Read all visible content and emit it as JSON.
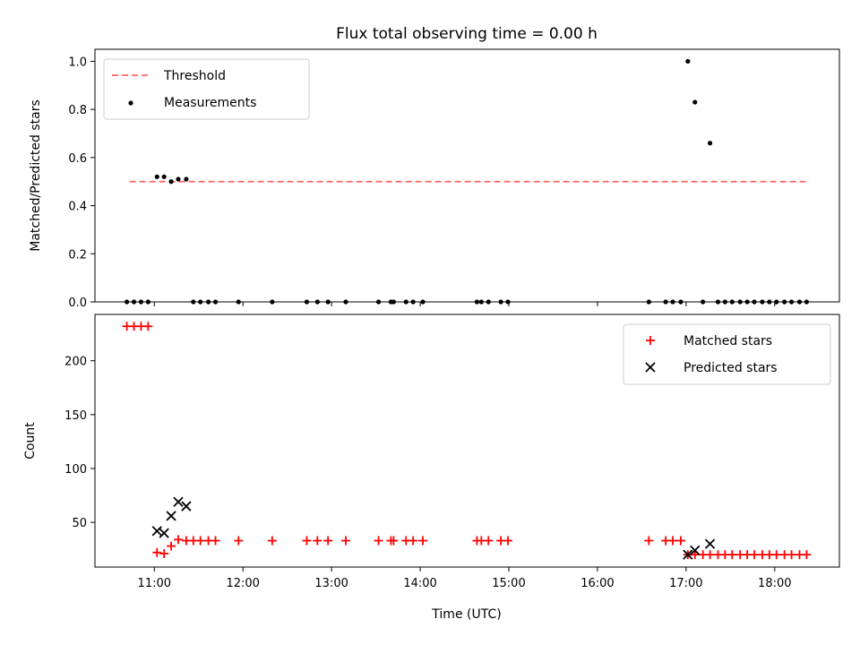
{
  "chart_data": [
    {
      "type": "scatter",
      "title": "Flux total observing time = 0.00 h",
      "ylabel": "Matched/Predicted stars",
      "ylim": [
        0,
        1.05
      ],
      "xlim": [
        10.33,
        18.73
      ],
      "yticks": [
        0.0,
        0.2,
        0.4,
        0.6,
        0.8,
        1.0
      ],
      "ytick_labels": [
        "0.0",
        "0.2",
        "0.4",
        "0.6",
        "0.8",
        "1.0"
      ],
      "legend_position": "top-left",
      "threshold": {
        "name": "Threshold",
        "value": 0.5,
        "x_range": [
          10.72,
          18.38
        ],
        "color": "#ff6666"
      },
      "measurements": {
        "name": "Measurements",
        "color": "#000000",
        "x": [
          10.69,
          10.77,
          10.85,
          10.93,
          11.03,
          11.11,
          11.19,
          11.27,
          11.36,
          11.44,
          11.52,
          11.61,
          11.69,
          11.95,
          12.33,
          12.72,
          12.84,
          12.96,
          13.16,
          13.53,
          13.67,
          13.7,
          13.84,
          13.92,
          14.03,
          14.64,
          14.69,
          14.77,
          14.91,
          14.99,
          16.58,
          16.77,
          16.85,
          16.94,
          17.02,
          17.1,
          17.19,
          17.27,
          17.36,
          17.44,
          17.52,
          17.61,
          17.69,
          17.77,
          17.86,
          17.94,
          18.02,
          18.11,
          18.19,
          18.28,
          18.36
        ],
        "y": [
          0,
          0,
          0,
          0,
          0.52,
          0.52,
          0.5,
          0.51,
          0.51,
          0,
          0,
          0,
          0,
          0,
          0,
          0,
          0,
          0,
          0,
          0,
          0,
          0,
          0,
          0,
          0,
          0,
          0,
          0,
          0,
          0,
          0,
          0,
          0,
          0,
          1.0,
          0.83,
          0,
          0.66,
          0,
          0,
          0,
          0,
          0,
          0,
          0,
          0,
          0,
          0,
          0,
          0,
          0
        ]
      }
    },
    {
      "type": "scatter",
      "xlabel": "Time (UTC)",
      "ylabel": "Count",
      "ylim": [
        8.5,
        243
      ],
      "xlim": [
        10.33,
        18.73
      ],
      "yticks": [
        50,
        100,
        150,
        200
      ],
      "ytick_labels": [
        "50",
        "100",
        "150",
        "200"
      ],
      "xticks": [
        11,
        12,
        13,
        14,
        15,
        16,
        17,
        18
      ],
      "xtick_labels": [
        "11:00",
        "12:00",
        "13:00",
        "14:00",
        "15:00",
        "16:00",
        "17:00",
        "18:00"
      ],
      "legend_position": "top-right",
      "series": [
        {
          "name": "Matched stars",
          "marker": "+",
          "color": "#ff0000",
          "x": [
            10.69,
            10.77,
            10.85,
            10.93,
            11.03,
            11.11,
            11.19,
            11.27,
            11.36,
            11.44,
            11.52,
            11.61,
            11.69,
            11.95,
            12.33,
            12.72,
            12.84,
            12.96,
            13.16,
            13.53,
            13.67,
            13.7,
            13.84,
            13.92,
            14.03,
            14.64,
            14.69,
            14.77,
            14.91,
            14.99,
            16.58,
            16.77,
            16.85,
            16.94,
            17.02,
            17.1,
            17.19,
            17.27,
            17.36,
            17.44,
            17.52,
            17.61,
            17.69,
            17.77,
            17.86,
            17.94,
            18.02,
            18.11,
            18.19,
            18.28,
            18.36
          ],
          "y": [
            232,
            232,
            232,
            232,
            22,
            21,
            28,
            34,
            33,
            33,
            33,
            33,
            33,
            33,
            33,
            33,
            33,
            33,
            33,
            33,
            33,
            33,
            33,
            33,
            33,
            33,
            33,
            33,
            33,
            33,
            33,
            33,
            33,
            33,
            20,
            20,
            20,
            20,
            20,
            20,
            20,
            20,
            20,
            20,
            20,
            20,
            20,
            20,
            20,
            20,
            20
          ]
        },
        {
          "name": "Predicted stars",
          "marker": "x",
          "color": "#000000",
          "x": [
            11.03,
            11.11,
            11.19,
            11.27,
            11.36,
            17.02,
            17.1,
            17.27
          ],
          "y": [
            42,
            40,
            56,
            69,
            65,
            20,
            24,
            30
          ]
        }
      ]
    }
  ]
}
